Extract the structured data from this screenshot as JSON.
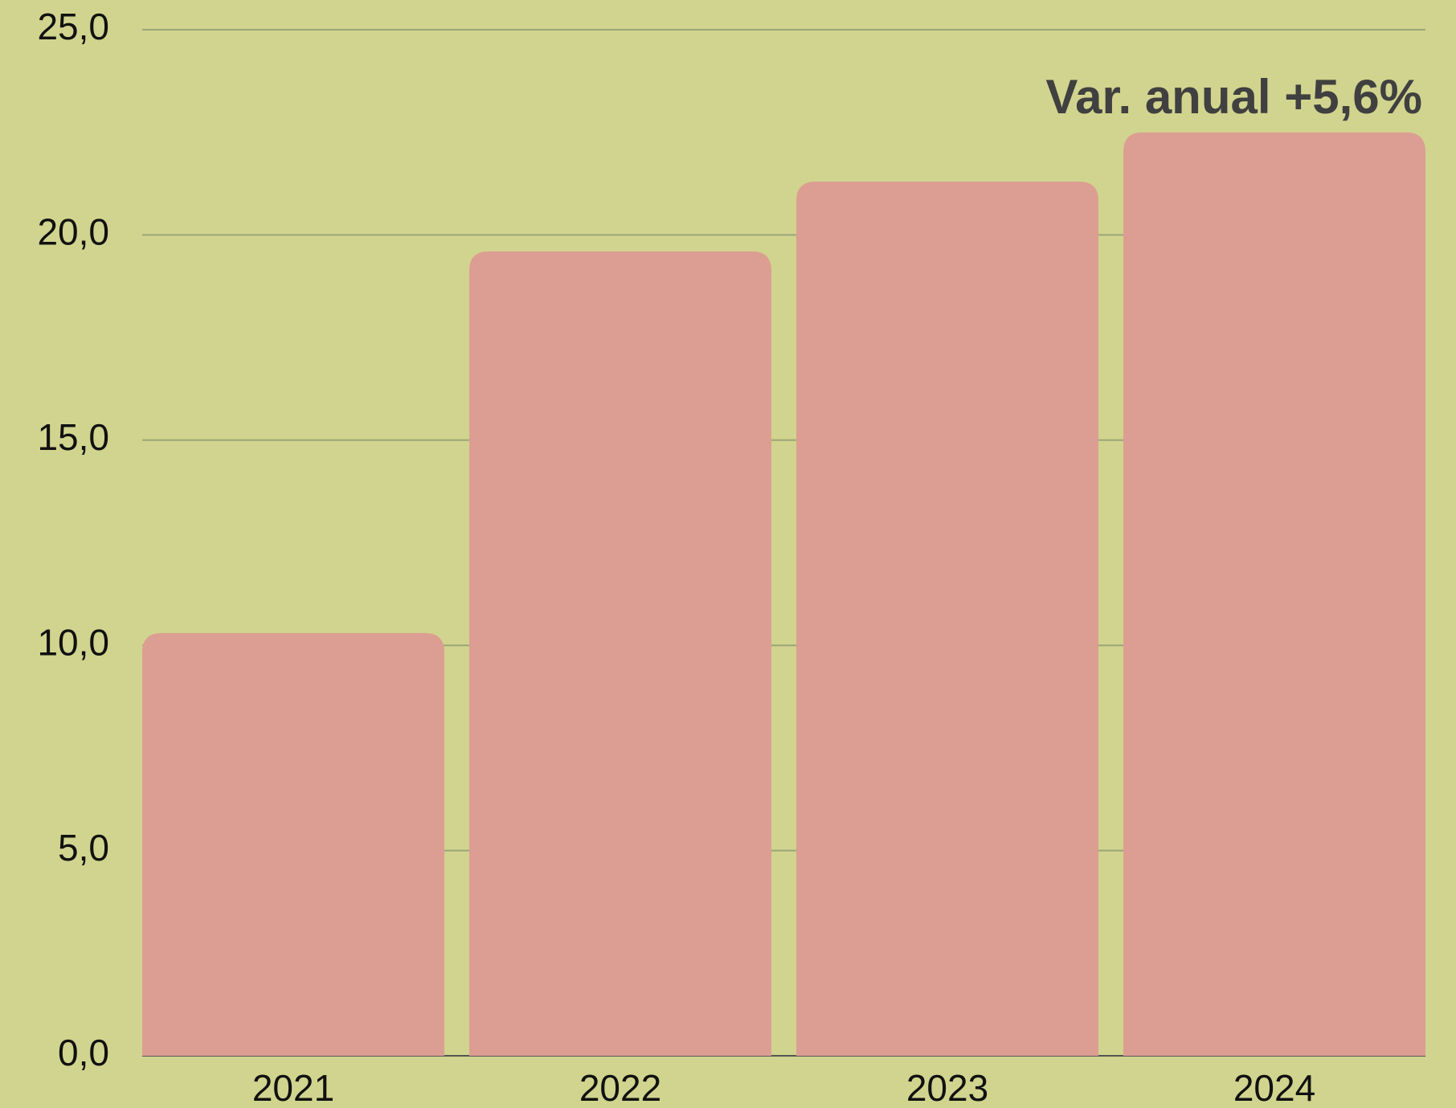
{
  "chart_data": {
    "type": "bar",
    "categories": [
      "2021",
      "2022",
      "2023",
      "2024"
    ],
    "values": [
      10.3,
      19.6,
      21.3,
      22.5
    ],
    "color": "#dc9e92",
    "ylim": [
      0,
      25
    ],
    "yticks": [
      {
        "value": 0,
        "label": "0,0"
      },
      {
        "value": 5,
        "label": "5,0"
      },
      {
        "value": 10,
        "label": "10,0"
      },
      {
        "value": 15,
        "label": "15,0"
      },
      {
        "value": 20,
        "label": "20,0"
      },
      {
        "value": 25,
        "label": "25,0"
      }
    ],
    "grid": true,
    "annotation": "Var. anual +5,6%"
  }
}
